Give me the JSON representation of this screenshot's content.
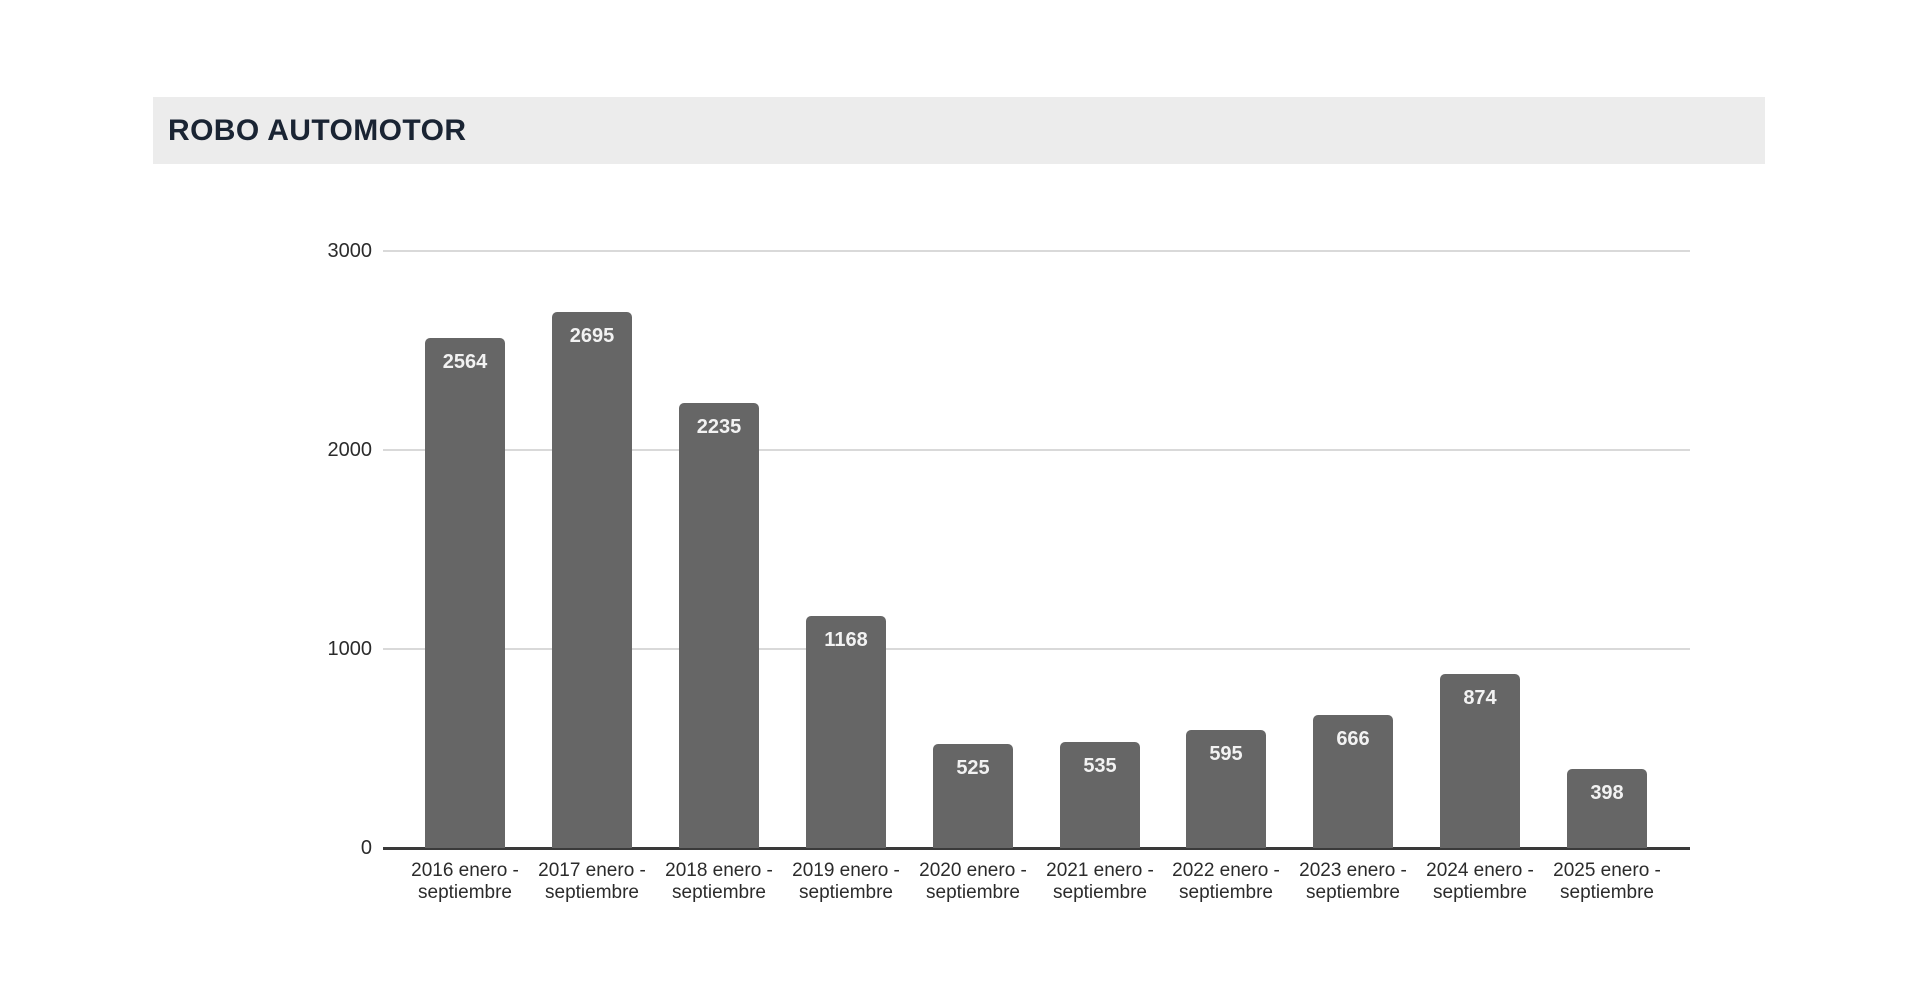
{
  "header": {
    "title": "ROBO AUTOMOTOR"
  },
  "colors": {
    "titlebar_bg": "#ececec",
    "title_text": "#1a2433",
    "bar": "#666666",
    "value_label": "#f2f2f2",
    "axis_label": "#2b2b2b",
    "gridline": "#d9d9d9",
    "axis_line": "#3a3a3a"
  },
  "chart_data": {
    "type": "bar",
    "title": "ROBO AUTOMOTOR",
    "categories": [
      "2016 enero - septiembre",
      "2017 enero - septiembre",
      "2018 enero - septiembre",
      "2019 enero - septiembre",
      "2020 enero - septiembre",
      "2021 enero - septiembre",
      "2022 enero - septiembre",
      "2023 enero - septiembre",
      "2024 enero - septiembre",
      "2025 enero - septiembre"
    ],
    "values": [
      2564,
      2695,
      2235,
      1168,
      525,
      535,
      595,
      666,
      874,
      398
    ],
    "value_labels_shown": true,
    "xlabel": "",
    "ylabel": "",
    "ylim": [
      0,
      3000
    ],
    "yticks": [
      0,
      1000,
      2000,
      3000
    ],
    "grid": true,
    "legend": "none"
  }
}
